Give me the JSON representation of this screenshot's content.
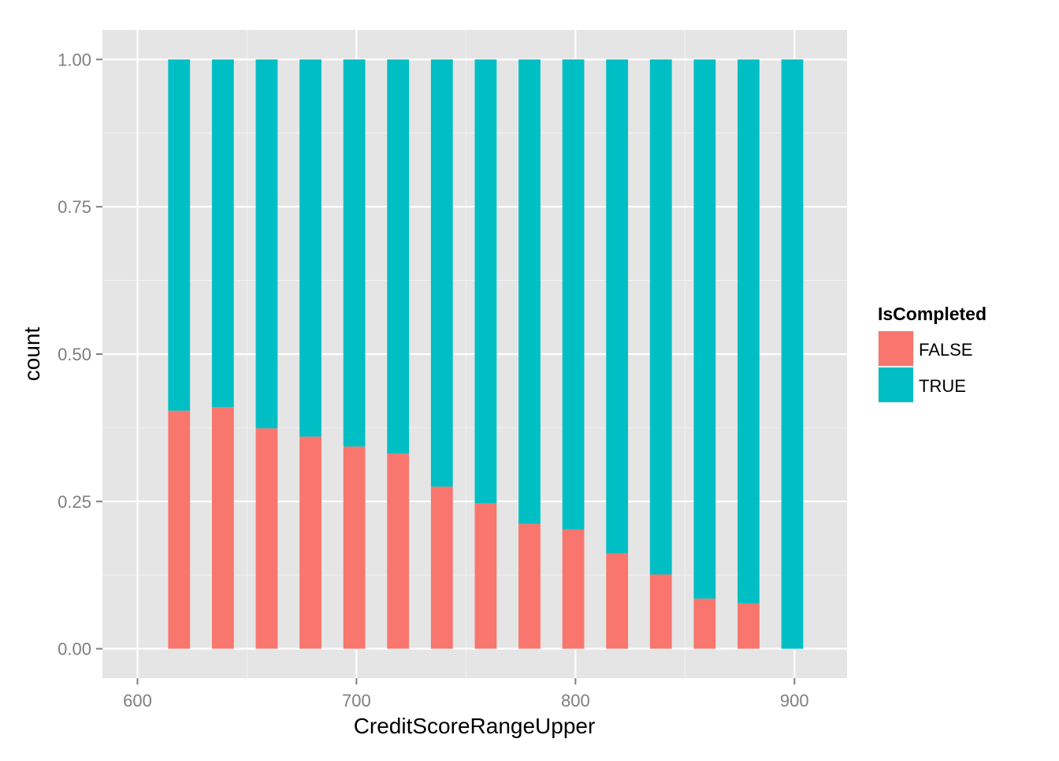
{
  "chart_data": {
    "type": "bar",
    "stacked": true,
    "title": "",
    "xlabel": "CreditScoreRangeUpper",
    "ylabel": "count",
    "xlim": [
      584,
      924
    ],
    "ylim": [
      -0.05,
      1.05
    ],
    "x_ticks": [
      600,
      700,
      800,
      900
    ],
    "y_ticks": [
      0.0,
      0.25,
      0.5,
      0.75,
      1.0
    ],
    "y_tick_labels": [
      "0.00",
      "0.25",
      "0.50",
      "0.75",
      "1.00"
    ],
    "bar_width": 10,
    "grid": true,
    "legend_position": "right",
    "x": [
      619,
      639,
      659,
      679,
      699,
      719,
      739,
      759,
      779,
      799,
      819,
      839,
      859,
      879,
      899
    ],
    "series": [
      {
        "name": "FALSE",
        "color": "#F8766D",
        "values": [
          0.404,
          0.41,
          0.374,
          0.36,
          0.343,
          0.331,
          0.275,
          0.247,
          0.212,
          0.202,
          0.162,
          0.126,
          0.085,
          0.077,
          0.0
        ]
      },
      {
        "name": "TRUE",
        "color": "#00BFC4",
        "values": [
          0.596,
          0.59,
          0.626,
          0.64,
          0.657,
          0.669,
          0.725,
          0.753,
          0.788,
          0.798,
          0.838,
          0.874,
          0.915,
          0.923,
          1.0
        ]
      }
    ],
    "legend": {
      "title": "IsCompleted",
      "entries": [
        "FALSE",
        "TRUE"
      ]
    }
  },
  "colors": {
    "panel_background": "#E5E5E5",
    "grid_major": "#FFFFFF",
    "grid_minor": "#F2F2F2",
    "tick_text": "#7F7F7F"
  }
}
